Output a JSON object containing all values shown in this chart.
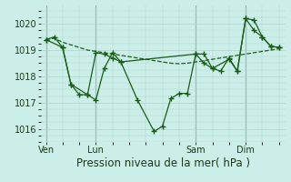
{
  "background_color": "#cceee8",
  "grid_color": "#aad4cc",
  "line_color": "#1a5c1a",
  "xlabel": "Pression niveau de la mer( hPa )",
  "xlabel_fontsize": 8.5,
  "yticks": [
    1016,
    1017,
    1018,
    1019,
    1020
  ],
  "xtick_labels": [
    "Ven",
    "Lun",
    "Sam",
    "Dim"
  ],
  "xtick_positions": [
    0,
    48,
    144,
    192
  ],
  "xlim": [
    -5,
    230
  ],
  "ylim": [
    1015.5,
    1020.7
  ],
  "series1_x": [
    0,
    8,
    16,
    24,
    32,
    40,
    48,
    56,
    64,
    72,
    80,
    88,
    96,
    104,
    112,
    120,
    128,
    136,
    144,
    152,
    160,
    168,
    176,
    184,
    192,
    200,
    208,
    216,
    224
  ],
  "series1_y": [
    1019.4,
    1019.45,
    1019.3,
    1019.2,
    1019.1,
    1019.0,
    1018.95,
    1018.9,
    1018.85,
    1018.8,
    1018.75,
    1018.7,
    1018.65,
    1018.6,
    1018.55,
    1018.5,
    1018.48,
    1018.5,
    1018.55,
    1018.6,
    1018.65,
    1018.7,
    1018.75,
    1018.8,
    1018.85,
    1018.9,
    1018.95,
    1019.0,
    1019.05
  ],
  "series2_x": [
    0,
    16,
    24,
    40,
    48,
    56,
    64,
    72,
    88,
    104,
    112,
    120,
    128,
    136,
    144,
    152,
    160,
    168,
    176,
    184,
    192,
    200,
    208,
    216,
    224
  ],
  "series2_y": [
    1019.4,
    1019.1,
    1017.7,
    1017.3,
    1017.1,
    1018.3,
    1018.9,
    1018.55,
    1017.1,
    1015.9,
    1016.1,
    1017.15,
    1017.35,
    1017.35,
    1018.85,
    1018.5,
    1018.3,
    1018.2,
    1018.7,
    1018.2,
    1020.2,
    1020.15,
    1019.5,
    1019.15,
    1019.1
  ],
  "series3_x": [
    0,
    8,
    16,
    24,
    32,
    40,
    48,
    56,
    64,
    72,
    144,
    152,
    160,
    176,
    184,
    192,
    200,
    208,
    216,
    224
  ],
  "series3_y": [
    1019.4,
    1019.5,
    1019.1,
    1017.7,
    1017.3,
    1017.3,
    1018.9,
    1018.85,
    1018.7,
    1018.55,
    1018.85,
    1018.85,
    1018.3,
    1018.65,
    1018.2,
    1020.2,
    1019.75,
    1019.5,
    1019.15,
    1019.1
  ]
}
